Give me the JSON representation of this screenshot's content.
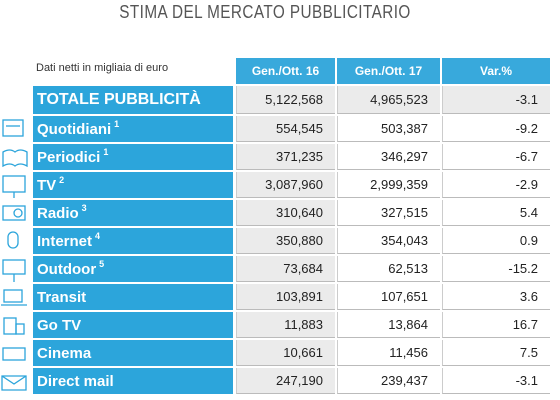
{
  "header": {
    "title": "STIMA DEL MERCATO PUBBLICITARIO"
  },
  "table": {
    "caption": "Dati netti in migliaia di euro",
    "columns": [
      "Gen./Ott. 16",
      "Gen./Ott. 17",
      "Var.%"
    ],
    "rows": [
      {
        "label": "TOTALE PUBBLICITÀ",
        "note": null,
        "cells": [
          "5,122,568",
          "4,965,523",
          "-3.1"
        ]
      },
      {
        "label": "Quotidiani",
        "note": "1",
        "cells": [
          "554,545",
          "503,387",
          "-9.2"
        ]
      },
      {
        "label": "Periodici",
        "note": "1",
        "cells": [
          "371,235",
          "346,297",
          "-6.7"
        ]
      },
      {
        "label": "TV",
        "note": "2",
        "cells": [
          "3,087,960",
          "2,999,359",
          "-2.9"
        ]
      },
      {
        "label": "Radio",
        "note": "3",
        "cells": [
          "310,640",
          "327,515",
          "5.4"
        ]
      },
      {
        "label": "Internet",
        "note": "4",
        "cells": [
          "350,880",
          "354,043",
          "0.9"
        ]
      },
      {
        "label": "Outdoor",
        "note": "5",
        "cells": [
          "73,684",
          "62,513",
          "-15.2"
        ]
      },
      {
        "label": "Transit",
        "note": null,
        "cells": [
          "103,891",
          "107,651",
          "3.6"
        ]
      },
      {
        "label": "Go TV",
        "note": null,
        "cells": [
          "11,883",
          "13,864",
          "16.7"
        ]
      },
      {
        "label": "Cinema",
        "note": null,
        "cells": [
          "10,661",
          "11,456",
          "7.5"
        ]
      },
      {
        "label": "Direct mail",
        "note": null,
        "cells": [
          "247,190",
          "239,437",
          "-3.1"
        ]
      }
    ]
  }
}
